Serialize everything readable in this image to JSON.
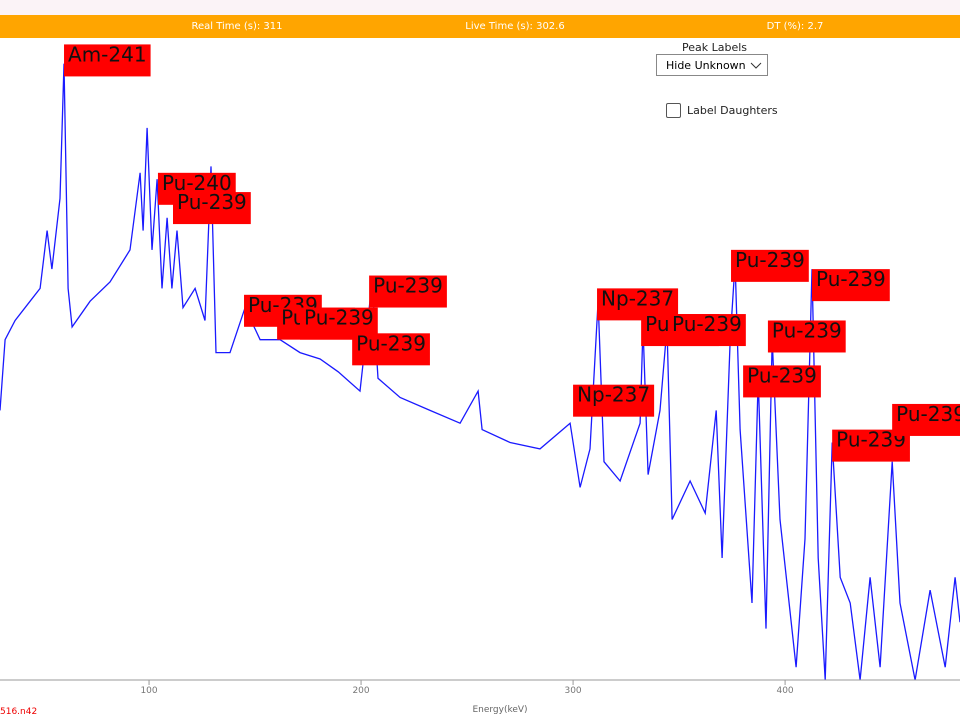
{
  "status_bar": {
    "real_time": "Real Time (s): 311",
    "live_time": "Live Time (s): 302.6",
    "dead_time": "DT (%): 2.7"
  },
  "controls": {
    "peak_labels_title": "Peak Labels",
    "peak_labels_option": "Hide Unknown",
    "label_daughters": "Label Daughters"
  },
  "file_name": "516.n42",
  "chart_data": {
    "type": "line",
    "x_label": "Energy(keV)",
    "xlim": [
      29.7,
      482.5
    ],
    "xticks": [
      100,
      200,
      300,
      400
    ],
    "ylim": [
      0,
      100
    ],
    "series": [
      {
        "color": "#1a1aff",
        "x": [
          29.7,
          32.1,
          36.8,
          43.9,
          48.6,
          51.9,
          54.2,
          58.0,
          59.9,
          61.8,
          63.7,
          72.2,
          81.6,
          91.0,
          95.8,
          97.2,
          99.1,
          101.4,
          103.8,
          106.1,
          108.5,
          110.8,
          113.2,
          116.0,
          121.7,
          126.4,
          129.2,
          131.6,
          138.2,
          145.3,
          152.4,
          161.8,
          171.2,
          180.7,
          189.2,
          199.5,
          205.2,
          208.0,
          218.4,
          232.5,
          246.7,
          255.2,
          257.1,
          270.3,
          284.4,
          298.6,
          303.3,
          308.0,
          311.8,
          314.6,
          322.2,
          331.6,
          333.0,
          335.4,
          341.0,
          344.3,
          346.7,
          355.2,
          362.3,
          367.5,
          370.3,
          374.1,
          376.4,
          378.8,
          384.4,
          387.3,
          391.0,
          393.9,
          397.6,
          405.2,
          409.4,
          412.7,
          415.6,
          418.9,
          422.2,
          426.0,
          430.7,
          435.4,
          440.1,
          444.8,
          450.5,
          454.2,
          461.3,
          468.4,
          475.5,
          480.2,
          482.5
        ],
        "values": [
          42,
          53,
          56,
          59,
          61,
          70,
          64,
          75,
          96,
          61,
          55,
          59,
          62,
          67,
          79,
          70,
          86,
          67,
          78,
          61,
          72,
          61,
          70,
          58,
          61,
          56,
          80,
          51,
          51,
          58,
          53,
          53,
          51,
          50,
          48,
          45,
          62,
          47,
          44,
          42,
          40,
          45,
          39,
          37,
          36,
          40,
          30,
          36,
          59,
          34,
          31,
          40,
          55,
          32,
          42,
          55,
          25,
          31,
          26,
          42,
          19,
          53,
          65,
          39,
          12,
          47,
          8,
          53,
          25,
          2,
          22,
          64,
          19,
          0,
          37,
          16,
          12,
          0,
          16,
          2,
          34,
          12,
          0,
          14,
          2,
          16,
          9
        ]
      }
    ],
    "peaks": [
      {
        "label": "Am-241",
        "x": 59.9,
        "y": 99
      },
      {
        "label": "Pu-240",
        "x": 104.2,
        "y": 79
      },
      {
        "label": "Pu-239",
        "x": 111.3,
        "y": 76
      },
      {
        "label": "Pu-239",
        "x": 144.8,
        "y": 60
      },
      {
        "label": "Pu-239",
        "x": 160.4,
        "y": 58
      },
      {
        "label": "Pu-239",
        "x": 171.2,
        "y": 58
      },
      {
        "label": "Pu-239",
        "x": 195.8,
        "y": 54
      },
      {
        "label": "Pu-239",
        "x": 203.8,
        "y": 63
      },
      {
        "label": "Np-237",
        "x": 311.3,
        "y": 61
      },
      {
        "label": "Np-237",
        "x": 300.0,
        "y": 46
      },
      {
        "label": "Pu-239",
        "x": 332.1,
        "y": 57
      },
      {
        "label": "Pu-239",
        "x": 344.8,
        "y": 57
      },
      {
        "label": "Pu-239",
        "x": 374.5,
        "y": 67
      },
      {
        "label": "Pu-239",
        "x": 412.7,
        "y": 64
      },
      {
        "label": "Pu-239",
        "x": 391.9,
        "y": 56
      },
      {
        "label": "Pu-239",
        "x": 380.2,
        "y": 49
      },
      {
        "label": "Pu-239",
        "x": 422.2,
        "y": 39
      },
      {
        "label": "Pu-239",
        "x": 450.5,
        "y": 43
      }
    ]
  }
}
